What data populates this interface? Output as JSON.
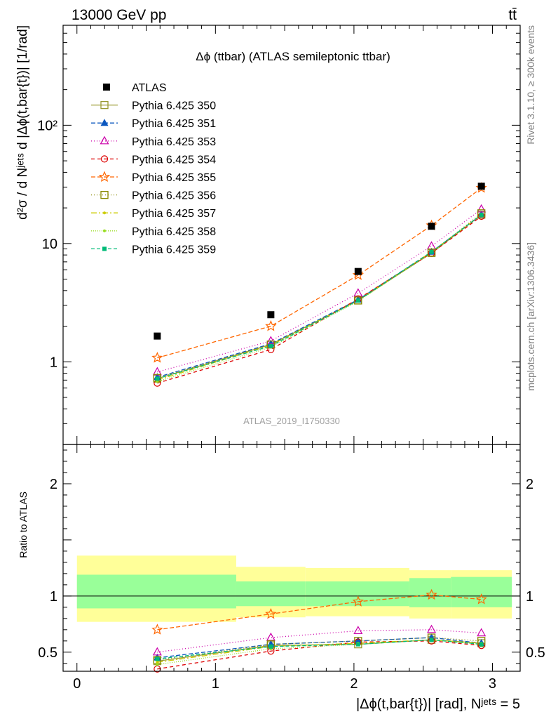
{
  "header": {
    "energy_label": "13000 GeV pp",
    "process_label": "tt̄",
    "side_label_top": "Rivet 3.1.10, ≥ 300k events",
    "side_label_bottom": "mcplots.cern.ch [arXiv:1306.3436]",
    "watermark": "ATLAS_2019_I1750330"
  },
  "chart_data": [
    {
      "type": "line",
      "panel": "main",
      "title": "Δϕ (ttbar) (ATLAS semileptonic ttbar)",
      "ylabel": "d²σ / d Nʲᵉᵗˢ d |Δϕ(t,bar{t})| [1/rad]",
      "xlabel": "",
      "yscale": "log",
      "xlim": [
        -0.1,
        3.2
      ],
      "ylim": [
        0.2,
        700
      ],
      "x_ticks": [
        0,
        1,
        2,
        3
      ],
      "y_tick_labels": [
        {
          "value": 1,
          "label": "1"
        },
        {
          "value": 10,
          "label": "10"
        },
        {
          "value": 100,
          "label": "10²"
        }
      ],
      "x": [
        0.58,
        1.4,
        2.03,
        2.56,
        2.92
      ],
      "reference": {
        "name": "ATLAS",
        "values": [
          1.65,
          2.5,
          5.8,
          14.0,
          30.5
        ]
      },
      "series": [
        {
          "name": "Pythia 6.425 350",
          "color": "#999933",
          "dash": "",
          "marker": "open-square",
          "values": [
            0.72,
            1.4,
            3.3,
            8.3,
            17.5
          ]
        },
        {
          "name": "Pythia 6.425 351",
          "color": "#0b57bf",
          "dash": "6,3",
          "marker": "filled-triangle",
          "values": [
            0.74,
            1.42,
            3.35,
            8.5,
            17.5
          ]
        },
        {
          "name": "Pythia 6.425 353",
          "color": "#cc00aa",
          "dash": "1,3",
          "marker": "open-triangle",
          "values": [
            0.82,
            1.5,
            3.8,
            9.5,
            19.5
          ]
        },
        {
          "name": "Pythia 6.425 354",
          "color": "#dd0000",
          "dash": "5,4",
          "marker": "open-circle",
          "values": [
            0.66,
            1.27,
            3.4,
            8.3,
            17.0
          ]
        },
        {
          "name": "Pythia 6.425 355",
          "color": "#ff6600",
          "dash": "6,3",
          "marker": "open-star",
          "values": [
            1.08,
            2.0,
            5.4,
            14.2,
            29.5
          ]
        },
        {
          "name": "Pythia 6.425 356",
          "color": "#888800",
          "dash": "1,3",
          "marker": "open-square",
          "values": [
            0.73,
            1.4,
            3.3,
            8.4,
            18.0
          ]
        },
        {
          "name": "Pythia 6.425 357",
          "color": "#cccc00",
          "dash": "8,3,2,3",
          "marker": "small-dot",
          "values": [
            0.7,
            1.38,
            3.3,
            8.5,
            17.5
          ]
        },
        {
          "name": "Pythia 6.425 358",
          "color": "#99dd22",
          "dash": "1,2",
          "marker": "small-dot",
          "values": [
            0.68,
            1.33,
            3.25,
            8.4,
            17.5
          ]
        },
        {
          "name": "Pythia 6.425 359",
          "color": "#00bb77",
          "dash": "5,3",
          "marker": "filled-square",
          "values": [
            0.72,
            1.36,
            3.3,
            8.5,
            17.5
          ]
        }
      ]
    },
    {
      "type": "line",
      "panel": "ratio",
      "ylabel": "Ratio to ATLAS",
      "xlabel": "|Δϕ(t,bar{t})| [rad], Nʲᵉᵗˢ = 5",
      "xlim": [
        -0.1,
        3.2
      ],
      "ylim": [
        0.33,
        2.35
      ],
      "x_ticks": [
        0,
        1,
        2,
        3
      ],
      "y_ticks": [
        0.5,
        1,
        2
      ],
      "bins": [
        [
          0.0,
          1.15
        ],
        [
          1.15,
          1.65
        ],
        [
          1.65,
          2.4
        ],
        [
          2.4,
          2.7
        ],
        [
          2.7,
          3.14
        ]
      ],
      "band_yellow": [
        [
          0.77,
          1.36
        ],
        [
          0.81,
          1.26
        ],
        [
          0.82,
          1.25
        ],
        [
          0.8,
          1.23
        ],
        [
          0.8,
          1.23
        ]
      ],
      "band_green": [
        [
          0.89,
          1.19
        ],
        [
          0.91,
          1.13
        ],
        [
          0.91,
          1.13
        ],
        [
          0.9,
          1.16
        ],
        [
          0.9,
          1.17
        ]
      ],
      "x": [
        0.58,
        1.4,
        2.03,
        2.56,
        2.92
      ],
      "series": [
        {
          "name": "Pythia 6.425 350",
          "values": [
            0.42,
            0.56,
            0.57,
            0.61,
            0.58
          ]
        },
        {
          "name": "Pythia 6.425 351",
          "values": [
            0.45,
            0.57,
            0.6,
            0.63,
            0.58
          ]
        },
        {
          "name": "Pythia 6.425 353",
          "values": [
            0.5,
            0.63,
            0.69,
            0.7,
            0.67
          ]
        },
        {
          "name": "Pythia 6.425 354",
          "values": [
            0.35,
            0.51,
            0.59,
            0.6,
            0.56
          ]
        },
        {
          "name": "Pythia 6.425 355",
          "values": [
            0.7,
            0.84,
            0.95,
            1.01,
            0.97
          ]
        },
        {
          "name": "Pythia 6.425 356",
          "values": [
            0.43,
            0.57,
            0.6,
            0.63,
            0.6
          ]
        },
        {
          "name": "Pythia 6.425 357",
          "values": [
            0.41,
            0.55,
            0.58,
            0.61,
            0.58
          ]
        },
        {
          "name": "Pythia 6.425 358",
          "values": [
            0.39,
            0.53,
            0.57,
            0.61,
            0.57
          ]
        },
        {
          "name": "Pythia 6.425 359",
          "values": [
            0.44,
            0.55,
            0.57,
            0.61,
            0.57
          ]
        }
      ]
    }
  ]
}
